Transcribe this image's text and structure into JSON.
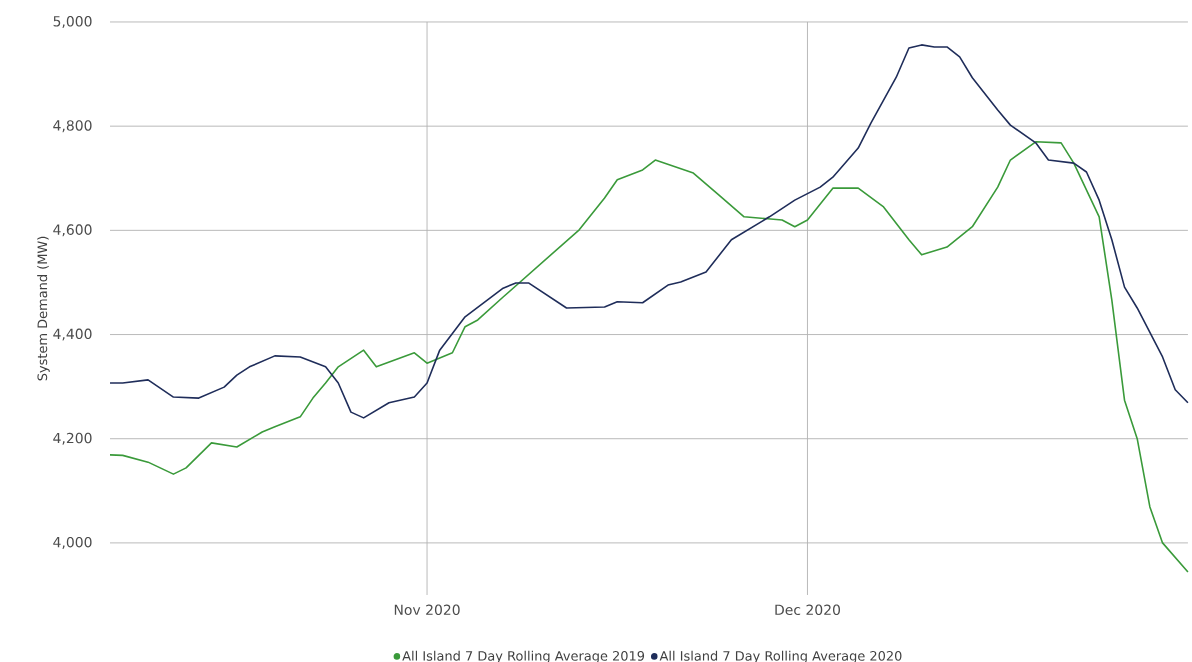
{
  "chart_data": {
    "type": "line",
    "ylabel": "System Demand (MW)",
    "xlim": [
      "2020-10-07",
      "2020-12-31"
    ],
    "ylim": [
      3900,
      5000
    ],
    "xticks": [
      {
        "value": "2020-11-01",
        "label": "Nov 2020"
      },
      {
        "value": "2020-12-01",
        "label": "Dec 2020"
      }
    ],
    "yticks": [
      {
        "value": 4000,
        "label": "4,000"
      },
      {
        "value": 4200,
        "label": "4,200"
      },
      {
        "value": 4400,
        "label": "4,400"
      },
      {
        "value": 4600,
        "label": "4,600"
      },
      {
        "value": 4800,
        "label": "4,800"
      },
      {
        "value": 5000,
        "label": "5,000"
      }
    ],
    "grid": true,
    "legend": "bottom",
    "marker": "none",
    "line_style": "solid",
    "series": [
      {
        "name": "All Island 7 Day Rolling Average 2019",
        "color": "#3a9a3a",
        "x": [
          "2020-10-07",
          "2020-10-08",
          "2020-10-10",
          "2020-10-12",
          "2020-10-13",
          "2020-10-15",
          "2020-10-17",
          "2020-10-19",
          "2020-10-20",
          "2020-10-22",
          "2020-10-23",
          "2020-10-24",
          "2020-10-25",
          "2020-10-27",
          "2020-10-28",
          "2020-10-31",
          "2020-11-01",
          "2020-11-03",
          "2020-11-04",
          "2020-11-05",
          "2020-11-07",
          "2020-11-13",
          "2020-11-15",
          "2020-11-16",
          "2020-11-18",
          "2020-11-19",
          "2020-11-22",
          "2020-11-24",
          "2020-11-26",
          "2020-11-29",
          "2020-11-30",
          "2020-12-01",
          "2020-12-03",
          "2020-12-05",
          "2020-12-07",
          "2020-12-09",
          "2020-12-10",
          "2020-12-12",
          "2020-12-14",
          "2020-12-16",
          "2020-12-17",
          "2020-12-19",
          "2020-12-21",
          "2020-12-22",
          "2020-12-24",
          "2020-12-25",
          "2020-12-26",
          "2020-12-27",
          "2020-12-28",
          "2020-12-29",
          "2020-12-31"
        ],
        "values": [
          4169,
          4168,
          4155,
          4132,
          4144,
          4192,
          4184,
          4213,
          4223,
          4242,
          4278,
          4307,
          4338,
          4370,
          4338,
          4365,
          4345,
          4365,
          4415,
          4428,
          4472,
          4601,
          4662,
          4697,
          4716,
          4735,
          4710,
          4668,
          4626,
          4620,
          4607,
          4620,
          4681,
          4681,
          4645,
          4582,
          4553,
          4568,
          4607,
          4683,
          4735,
          4770,
          4768,
          4729,
          4626,
          4466,
          4274,
          4200,
          4069,
          4000,
          3944
        ]
      },
      {
        "name": "All Island 7 Day Rolling Average 2020",
        "color": "#1f2d5a",
        "x": [
          "2020-10-07",
          "2020-10-08",
          "2020-10-10",
          "2020-10-12",
          "2020-10-14",
          "2020-10-16",
          "2020-10-17",
          "2020-10-18",
          "2020-10-20",
          "2020-10-22",
          "2020-10-24",
          "2020-10-25",
          "2020-10-26",
          "2020-10-27",
          "2020-10-29",
          "2020-10-31",
          "2020-11-01",
          "2020-11-02",
          "2020-11-04",
          "2020-11-07",
          "2020-11-08",
          "2020-11-09",
          "2020-11-12",
          "2020-11-15",
          "2020-11-16",
          "2020-11-18",
          "2020-11-20",
          "2020-11-21",
          "2020-11-23",
          "2020-11-25",
          "2020-11-28",
          "2020-11-30",
          "2020-12-02",
          "2020-12-03",
          "2020-12-05",
          "2020-12-06",
          "2020-12-08",
          "2020-12-09",
          "2020-12-10",
          "2020-12-11",
          "2020-12-12",
          "2020-12-13",
          "2020-12-14",
          "2020-12-16",
          "2020-12-17",
          "2020-12-19",
          "2020-12-20",
          "2020-12-22",
          "2020-12-23",
          "2020-12-24",
          "2020-12-25",
          "2020-12-26",
          "2020-12-27",
          "2020-12-29",
          "2020-12-30",
          "2020-12-31"
        ],
        "values": [
          4307,
          4307,
          4313,
          4280,
          4278,
          4299,
          4322,
          4338,
          4359,
          4357,
          4338,
          4307,
          4251,
          4240,
          4269,
          4280,
          4307,
          4370,
          4434,
          4489,
          4499,
          4499,
          4451,
          4453,
          4463,
          4461,
          4495,
          4501,
          4520,
          4582,
          4626,
          4658,
          4683,
          4702,
          4758,
          4806,
          4894,
          4950,
          4956,
          4952,
          4952,
          4933,
          4893,
          4831,
          4802,
          4768,
          4735,
          4729,
          4712,
          4658,
          4582,
          4491,
          4451,
          4357,
          4294,
          4269
        ]
      }
    ]
  }
}
